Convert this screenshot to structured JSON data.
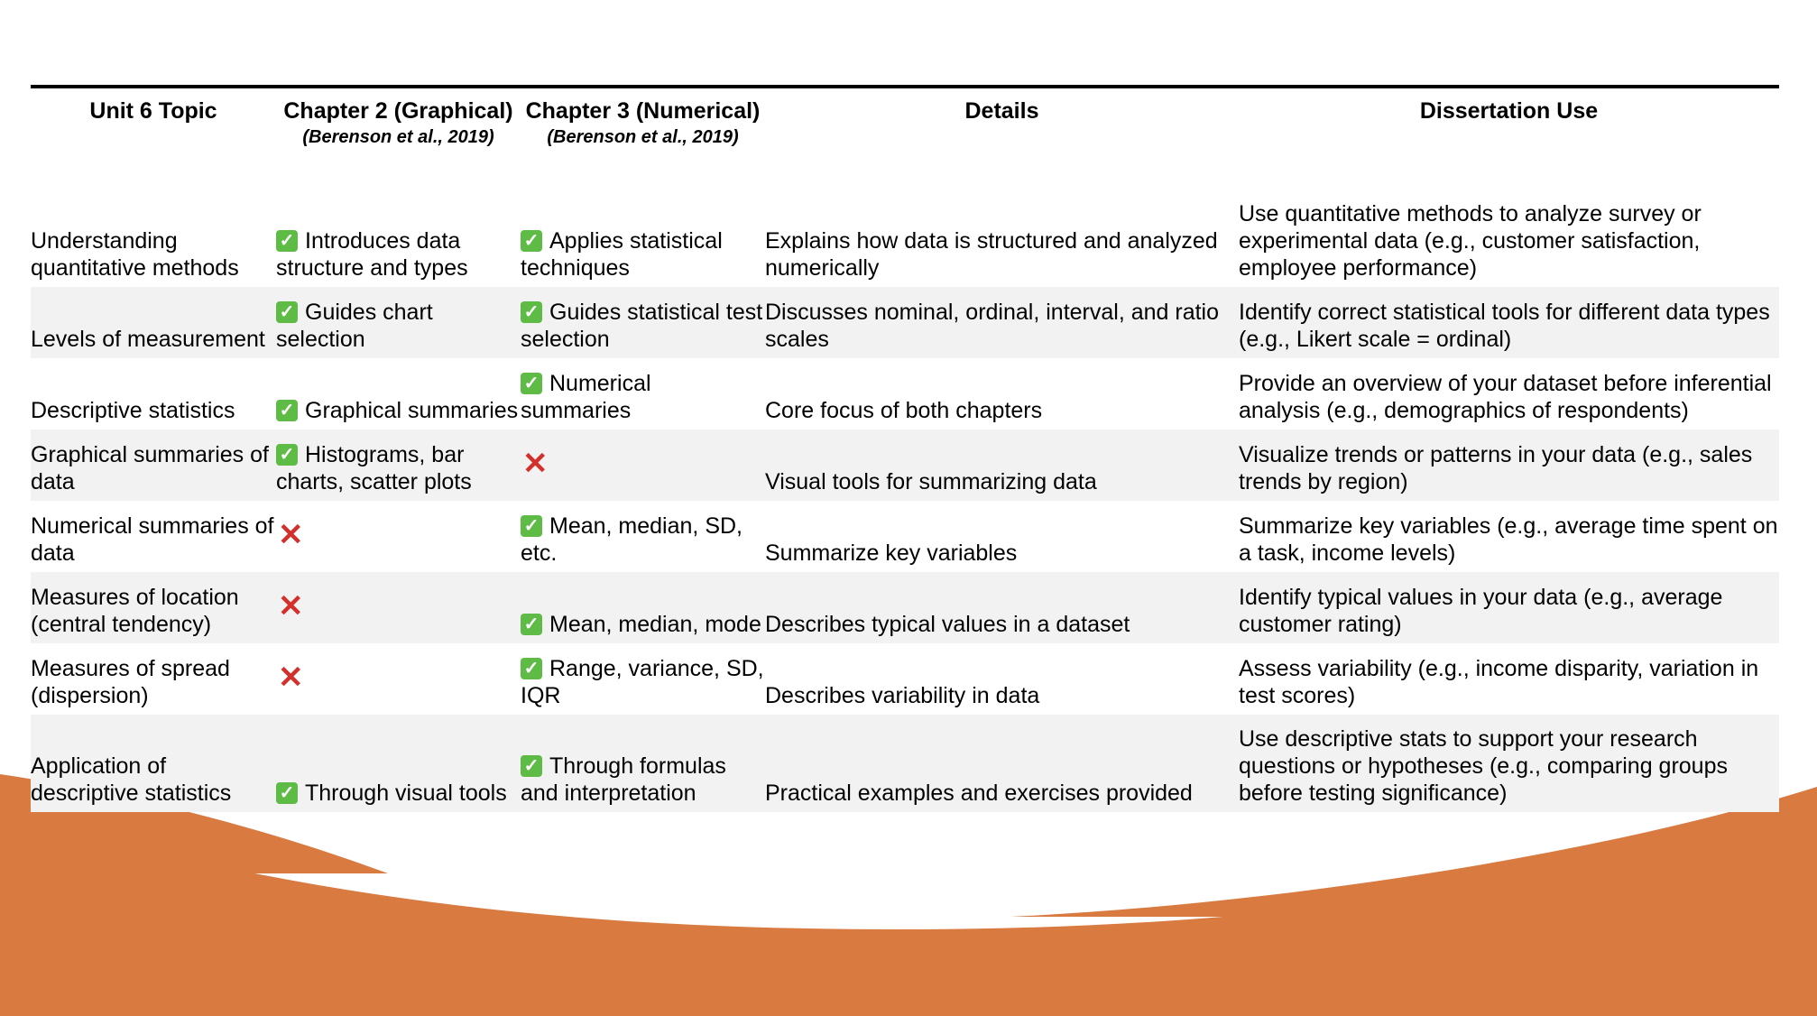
{
  "headers": {
    "topic": "Unit 6 Topic",
    "ch2": "Chapter 2 (Graphical)",
    "ch2_cite": "(Berenson et al., 2019)",
    "ch3": "Chapter 3 (Numerical)",
    "ch3_cite": "(Berenson et al., 2019)",
    "details": "Details",
    "use": "Dissertation Use"
  },
  "marks": {
    "yes": "✓",
    "no": "✕"
  },
  "colors": {
    "accent": "#d97a41",
    "yes": "#5dbb46",
    "no": "#d3302c",
    "stripe": "#f2f2f2"
  },
  "rows": [
    {
      "topic": "Understanding quantitative methods",
      "ch2": {
        "ok": true,
        "text": "Introduces data structure and types"
      },
      "ch3": {
        "ok": true,
        "text": "Applies statistical techniques"
      },
      "details": "Explains how data is structured and analyzed numerically",
      "use": "Use quantitative methods to analyze survey or experimental data (e.g., customer satisfaction, employee performance)"
    },
    {
      "topic": "Levels of measurement",
      "ch2": {
        "ok": true,
        "text": "Guides chart selection"
      },
      "ch3": {
        "ok": true,
        "text": "Guides statistical test selection"
      },
      "details": "Discusses nominal, ordinal, interval, and ratio scales",
      "use": "Identify correct statistical tools for different data types (e.g., Likert scale = ordinal)"
    },
    {
      "topic": "Descriptive statistics",
      "ch2": {
        "ok": true,
        "text": "Graphical summaries"
      },
      "ch3": {
        "ok": true,
        "text": "Numerical summaries"
      },
      "details": "Core focus of both chapters",
      "use": "Provide an overview of your dataset before inferential analysis (e.g., demographics of respondents)"
    },
    {
      "topic": "Graphical summaries of data",
      "ch2": {
        "ok": true,
        "text": "Histograms, bar charts, scatter plots"
      },
      "ch3": {
        "ok": false,
        "text": ""
      },
      "details": "Visual tools for summarizing data",
      "use": "Visualize trends or patterns in your data (e.g., sales trends by region)"
    },
    {
      "topic": "Numerical summaries of data",
      "ch2": {
        "ok": false,
        "text": ""
      },
      "ch3": {
        "ok": true,
        "text": "Mean, median, SD, etc."
      },
      "details": "Summarize key variables",
      "use": "Summarize key variables (e.g., average time spent on a task, income levels)"
    },
    {
      "topic": "Measures of location (central tendency)",
      "ch2": {
        "ok": false,
        "text": ""
      },
      "ch3": {
        "ok": true,
        "text": "Mean, median, mode"
      },
      "details": "Describes typical values in a dataset",
      "use": "Identify typical values in your data (e.g., average customer rating)"
    },
    {
      "topic": "Measures of spread (dispersion)",
      "ch2": {
        "ok": false,
        "text": ""
      },
      "ch3": {
        "ok": true,
        "text": "Range, variance, SD, IQR"
      },
      "details": "Describes variability in data",
      "use": "Assess variability (e.g., income disparity, variation in test scores)"
    },
    {
      "topic": "Application of descriptive statistics",
      "ch2": {
        "ok": true,
        "text": "Through visual tools"
      },
      "ch3": {
        "ok": true,
        "text": "Through formulas and interpretation"
      },
      "details": "Practical examples and exercises provided",
      "use": "Use descriptive stats to support your research questions or hypotheses (e.g., comparing groups before testing significance)"
    }
  ]
}
